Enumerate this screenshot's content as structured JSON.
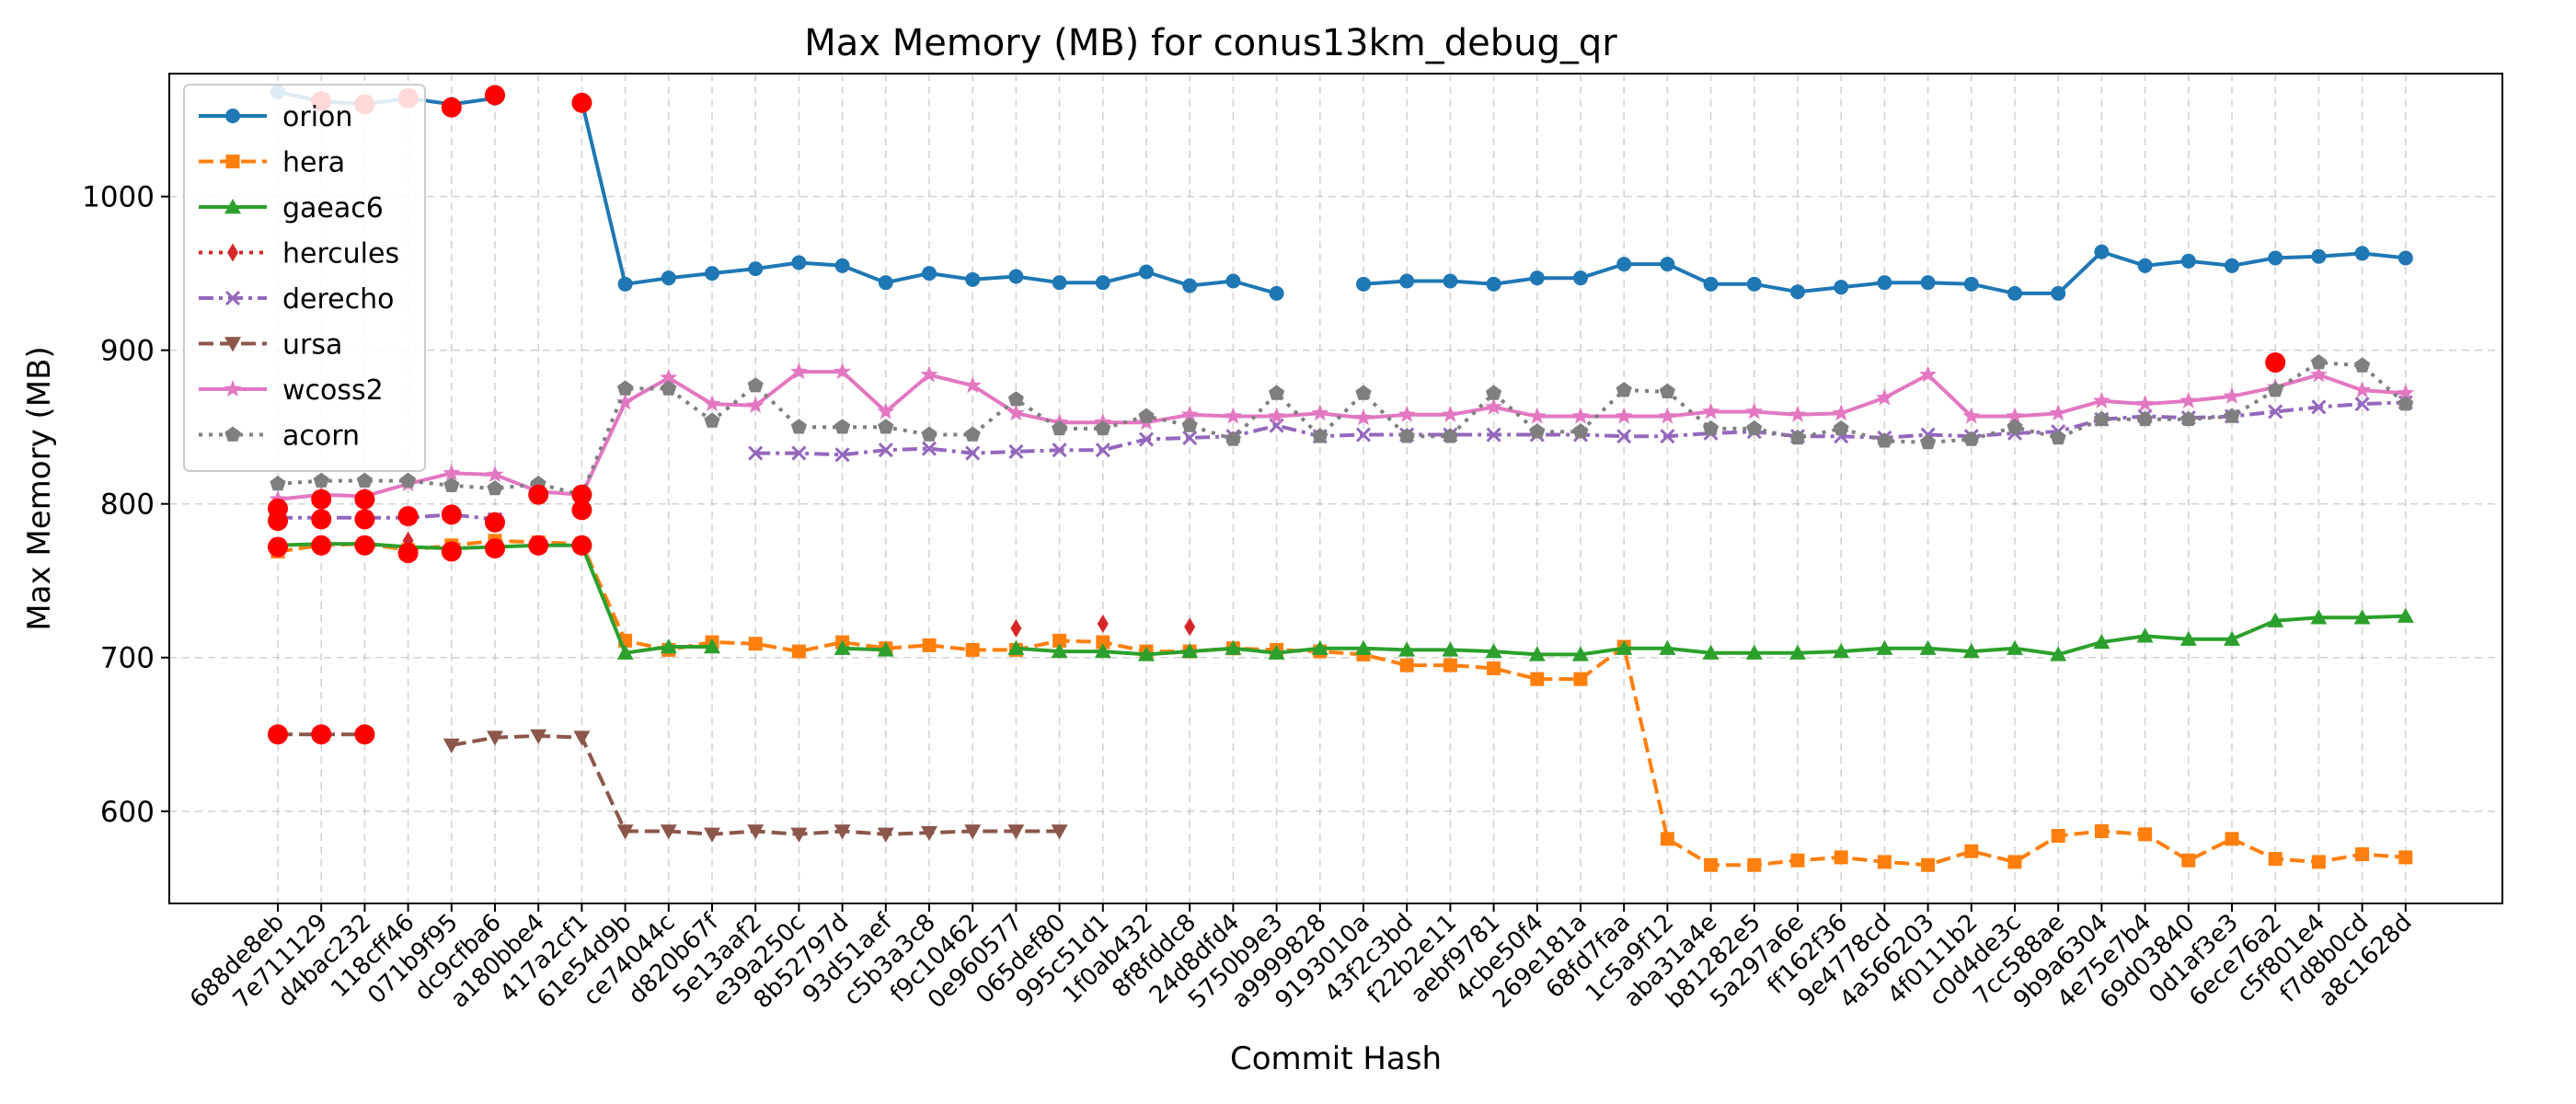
{
  "chart_data": {
    "type": "line",
    "title": "Max Memory (MB) for conus13km_debug_qr",
    "xlabel": "Commit Hash",
    "ylabel": "Max Memory (MB)",
    "ylim": [
      540,
      1080
    ],
    "yticks": [
      600,
      700,
      800,
      900,
      1000
    ],
    "grid": true,
    "legend_position": "top-left",
    "categories": [
      "688de8eb",
      "7e711129",
      "d4bac232",
      "118cff46",
      "071b9f95",
      "dc9cfba6",
      "a180bbe4",
      "417a2cf1",
      "61e54d9b",
      "ce74044c",
      "d820b67f",
      "5e13aaf2",
      "e39a250c",
      "8b52797d",
      "93d51aef",
      "c5b3a3c8",
      "f9c10462",
      "0e960577",
      "065def80",
      "995c51d1",
      "1f0ab432",
      "8f8fddc8",
      "24d8dfd4",
      "5750b9e3",
      "a9999828",
      "9193010a",
      "43f2c3bd",
      "f22b2e11",
      "aebf9781",
      "4cbe50f4",
      "269e181a",
      "68fd7faa",
      "1c5a9f12",
      "aba31a4e",
      "b81282e5",
      "5a297a6e",
      "ff162f36",
      "9e4778cd",
      "4a566203",
      "4f0111b2",
      "c0d4de3c",
      "7cc588ae",
      "9b9a6304",
      "4e75e7b4",
      "69d03840",
      "0d1af3e3",
      "6ece76a2",
      "c5f801e4",
      "f7d8b0cd",
      "a8c1628d"
    ],
    "series": [
      {
        "name": "orion",
        "color": "#1f77b4",
        "marker": "circle",
        "dash": "solid",
        "values": [
          1068,
          1062,
          1060,
          1064,
          1060,
          1064,
          null,
          1062,
          943,
          947,
          950,
          953,
          957,
          955,
          944,
          950,
          946,
          948,
          944,
          944,
          951,
          942,
          945,
          937,
          null,
          943,
          945,
          945,
          943,
          947,
          947,
          956,
          956,
          943,
          943,
          938,
          941,
          944,
          944,
          943,
          937,
          937,
          964,
          955,
          958,
          955,
          960,
          961,
          963,
          960
        ]
      },
      {
        "name": "hera",
        "color": "#ff7f0e",
        "marker": "square",
        "dash": "dashed",
        "values": [
          769,
          773,
          774,
          770,
          773,
          776,
          775,
          774,
          711,
          705,
          710,
          709,
          704,
          710,
          706,
          708,
          705,
          705,
          711,
          710,
          704,
          704,
          706,
          705,
          704,
          702,
          695,
          695,
          693,
          686,
          686,
          707,
          582,
          565,
          565,
          568,
          570,
          567,
          565,
          574,
          567,
          584,
          587,
          585,
          568,
          582,
          569,
          567,
          572,
          570
        ]
      },
      {
        "name": "gaeac6",
        "color": "#2ca02c",
        "marker": "triangle-up",
        "dash": "solid",
        "values": [
          773,
          774,
          774,
          772,
          771,
          772,
          773,
          773,
          703,
          707,
          707,
          null,
          null,
          706,
          705,
          null,
          null,
          706,
          704,
          704,
          702,
          704,
          706,
          703,
          706,
          706,
          705,
          705,
          704,
          702,
          702,
          706,
          706,
          703,
          703,
          703,
          704,
          706,
          706,
          704,
          706,
          702,
          710,
          714,
          712,
          712,
          724,
          726,
          726,
          727
        ]
      },
      {
        "name": "hercules",
        "color": "#d62728",
        "marker": "diamond",
        "dash": "dotted",
        "values": [
          null,
          null,
          null,
          776,
          null,
          null,
          null,
          null,
          null,
          null,
          null,
          null,
          null,
          null,
          null,
          null,
          null,
          719,
          null,
          722,
          null,
          720,
          null,
          null,
          null,
          null,
          null,
          null,
          null,
          null,
          null,
          null,
          null,
          null,
          null,
          null,
          null,
          null,
          null,
          null,
          null,
          null,
          null,
          null,
          null,
          null,
          null,
          null,
          null,
          null
        ]
      },
      {
        "name": "derecho",
        "color": "#9467bd",
        "marker": "x",
        "dash": "dashdot",
        "values": [
          791,
          791,
          791,
          791,
          793,
          790,
          null,
          null,
          null,
          null,
          null,
          833,
          833,
          832,
          835,
          836,
          833,
          834,
          835,
          835,
          842,
          843,
          844,
          851,
          844,
          845,
          845,
          845,
          845,
          845,
          845,
          844,
          844,
          846,
          847,
          844,
          844,
          843,
          845,
          844,
          846,
          847,
          855,
          857,
          856,
          857,
          860,
          863,
          865,
          866
        ]
      },
      {
        "name": "ursa",
        "color": "#8c564b",
        "marker": "triangle-down",
        "dash": "dashed",
        "values": [
          650,
          650,
          650,
          null,
          643,
          648,
          649,
          648,
          587,
          587,
          585,
          587,
          585,
          587,
          585,
          586,
          587,
          587,
          587,
          null,
          null,
          null,
          null,
          null,
          null,
          null,
          null,
          null,
          null,
          null,
          null,
          null,
          null,
          null,
          null,
          null,
          null,
          null,
          null,
          null,
          null,
          null,
          null,
          null,
          null,
          null,
          null,
          null,
          null,
          null
        ]
      },
      {
        "name": "wcoss2",
        "color": "#e377c2",
        "marker": "star",
        "dash": "solid",
        "values": [
          803,
          806,
          805,
          813,
          820,
          819,
          808,
          806,
          866,
          882,
          865,
          864,
          886,
          886,
          860,
          884,
          877,
          859,
          853,
          853,
          853,
          858,
          857,
          857,
          859,
          856,
          858,
          858,
          863,
          857,
          857,
          857,
          857,
          860,
          860,
          858,
          859,
          869,
          884,
          857,
          857,
          859,
          867,
          865,
          867,
          870,
          876,
          884,
          874,
          872
        ]
      },
      {
        "name": "acorn",
        "color": "#7f7f7f",
        "marker": "pentagon",
        "dash": "dotted",
        "values": [
          813,
          815,
          815,
          815,
          812,
          810,
          813,
          806,
          875,
          875,
          854,
          877,
          850,
          850,
          850,
          845,
          845,
          868,
          849,
          849,
          857,
          851,
          842,
          872,
          844,
          872,
          844,
          844,
          872,
          847,
          847,
          874,
          873,
          849,
          849,
          843,
          849,
          841,
          840,
          842,
          850,
          843,
          855,
          855,
          855,
          857,
          874,
          892,
          890,
          865
        ]
      }
    ],
    "highlights": [
      {
        "category": "688de8eb",
        "value": 797
      },
      {
        "category": "7e711129",
        "value": 803
      },
      {
        "category": "d4bac232",
        "value": 803
      },
      {
        "category": "688de8eb",
        "value": 789
      },
      {
        "category": "7e711129",
        "value": 790
      },
      {
        "category": "d4bac232",
        "value": 790
      },
      {
        "category": "688de8eb",
        "value": 772
      },
      {
        "category": "7e711129",
        "value": 773
      },
      {
        "category": "d4bac232",
        "value": 773
      },
      {
        "category": "688de8eb",
        "value": 650
      },
      {
        "category": "7e711129",
        "value": 650
      },
      {
        "category": "d4bac232",
        "value": 650
      },
      {
        "category": "7e711129",
        "value": 1062
      },
      {
        "category": "d4bac232",
        "value": 1060
      },
      {
        "category": "118cff46",
        "value": 1064
      },
      {
        "category": "118cff46",
        "value": 792
      },
      {
        "category": "118cff46",
        "value": 768
      },
      {
        "category": "071b9f95",
        "value": 1058
      },
      {
        "category": "071b9f95",
        "value": 793
      },
      {
        "category": "071b9f95",
        "value": 769
      },
      {
        "category": "dc9cfba6",
        "value": 1066
      },
      {
        "category": "dc9cfba6",
        "value": 788
      },
      {
        "category": "dc9cfba6",
        "value": 771
      },
      {
        "category": "a180bbe4",
        "value": 806
      },
      {
        "category": "a180bbe4",
        "value": 773
      },
      {
        "category": "417a2cf1",
        "value": 1061
      },
      {
        "category": "417a2cf1",
        "value": 806
      },
      {
        "category": "417a2cf1",
        "value": 796
      },
      {
        "category": "417a2cf1",
        "value": 773
      },
      {
        "category": "6ece76a2",
        "value": 892
      }
    ],
    "highlight_color": "#ff0000"
  }
}
